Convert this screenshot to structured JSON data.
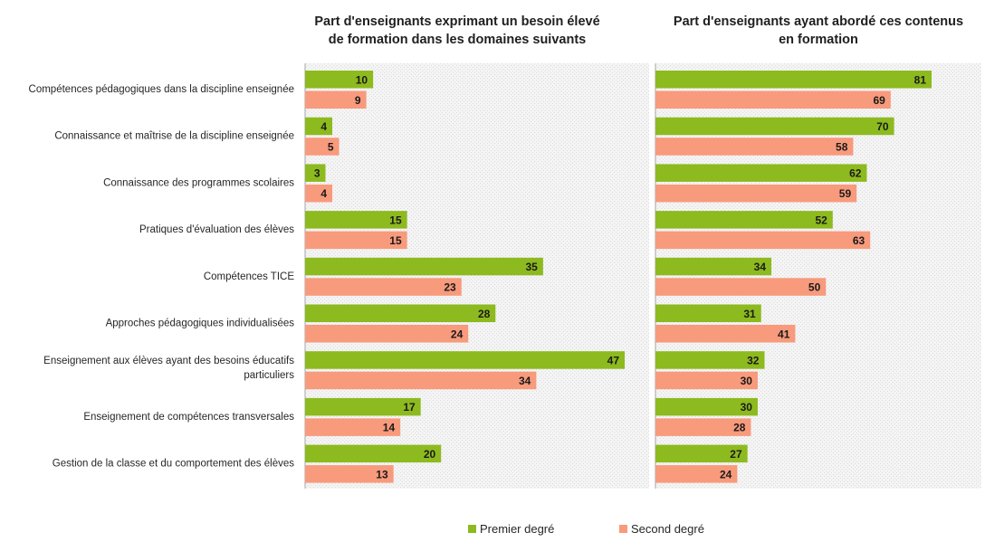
{
  "chart_data": {
    "type": "bar",
    "orientation": "horizontal",
    "categories": [
      "Compétences pédagogiques dans la discipline enseignée",
      "Connaissance et maîtrise de la discipline enseignée",
      "Connaissance des programmes scolaires",
      "Pratiques d'évaluation des élèves",
      "Compétences TICE",
      "Approches pédagogiques individualisées",
      "Enseignement aux élèves ayant des besoins éducatifs particuliers",
      "Enseignement de compétences transversales",
      "Gestion de la classe et du comportement des élèves"
    ],
    "category_lines": [
      [
        "Compétences pédagogiques dans la discipline enseignée"
      ],
      [
        "Connaissance et maîtrise de la discipline enseignée"
      ],
      [
        "Connaissance des programmes scolaires"
      ],
      [
        "Pratiques d'évaluation des élèves"
      ],
      [
        "Compétences TICE"
      ],
      [
        "Approches pédagogiques individualisées"
      ],
      [
        "Enseignement aux élèves ayant des besoins éducatifs",
        "particuliers"
      ],
      [
        "Enseignement de compétences transversales"
      ],
      [
        "Gestion de la classe et du comportement des élèves"
      ]
    ],
    "legend_position": "bottom",
    "grid": false,
    "panels": [
      {
        "title_lines": [
          "Part d'enseignants exprimant un besoin élevé",
          "de formation dans les domaines suivants"
        ],
        "xlim": [
          0,
          50
        ],
        "series": [
          {
            "name": "Premier degré",
            "color": "#8dba1e",
            "values": [
              10,
              4,
              3,
              15,
              35,
              28,
              47,
              17,
              20
            ]
          },
          {
            "name": "Second degré",
            "color": "#f89a7c",
            "values": [
              9,
              5,
              4,
              15,
              23,
              24,
              34,
              14,
              13
            ]
          }
        ]
      },
      {
        "title_lines": [
          "Part d'enseignants ayant abordé ces contenus",
          "en formation"
        ],
        "xlim": [
          0,
          95
        ],
        "series": [
          {
            "name": "Premier degré",
            "color": "#8dba1e",
            "values": [
              81,
              70,
              62,
              52,
              34,
              31,
              32,
              30,
              27
            ]
          },
          {
            "name": "Second degré",
            "color": "#f89a7c",
            "values": [
              69,
              58,
              59,
              63,
              50,
              41,
              30,
              28,
              24
            ]
          }
        ]
      }
    ],
    "legend": [
      {
        "name": "Premier degré",
        "color": "#8dba1e"
      },
      {
        "name": "Second degré",
        "color": "#f89a7c"
      }
    ]
  }
}
